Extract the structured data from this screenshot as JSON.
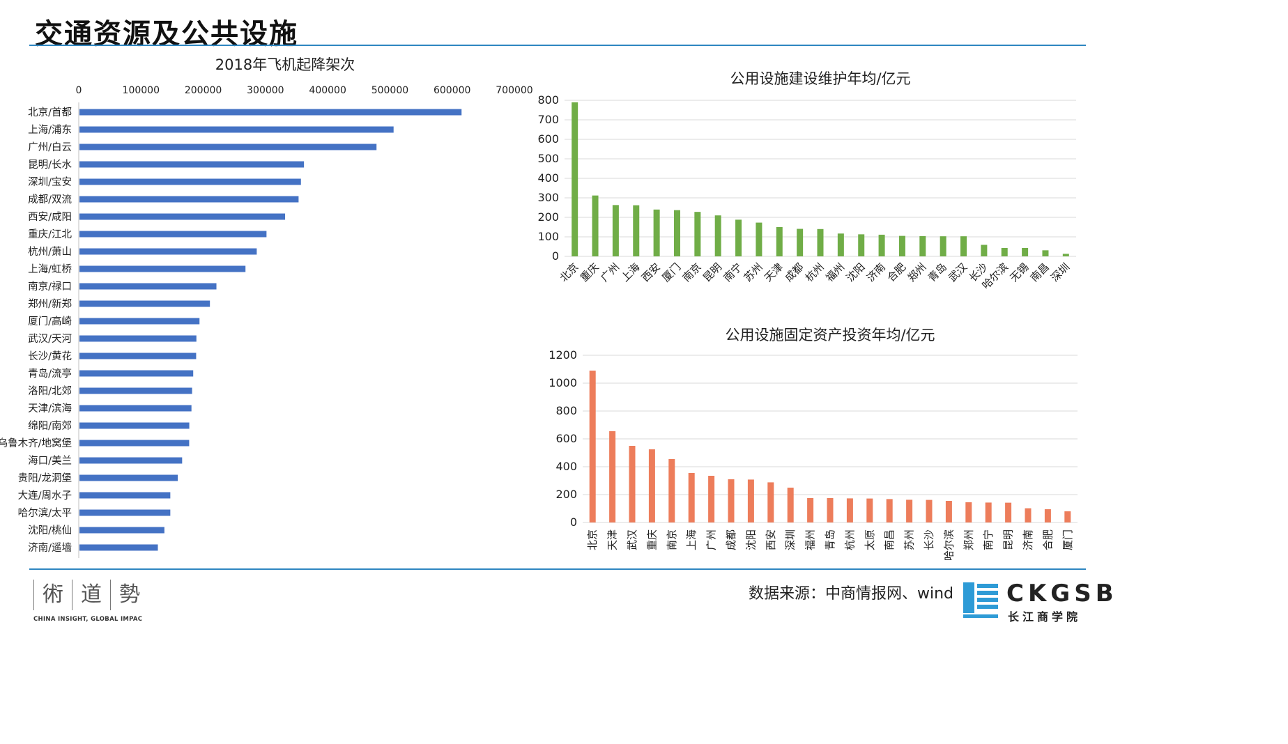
{
  "page": {
    "title": "交通资源及公共设施",
    "source": "数据来源：中商情报网、wind",
    "logo_left": {
      "chars": [
        "術",
        "道",
        "勢"
      ],
      "tagline": "CHINA INSIGHT, GLOBAL IMPAC"
    },
    "logo_right": {
      "wordmark": "CKGSB",
      "subtitle": "长江商学院"
    }
  },
  "colors": {
    "blue_bar": "#4472c4",
    "green_bar": "#70ad47",
    "orange_bar": "#ed7d5b",
    "rule": "#2e86c1",
    "grid": "#d9d9d9"
  },
  "chart_data": [
    {
      "id": "flights",
      "type": "bar",
      "orientation": "horizontal",
      "title": "2018年飞机起降架次",
      "categories": [
        "北京/首都",
        "上海/浦东",
        "广州/白云",
        "昆明/长水",
        "深圳/宝安",
        "成都/双流",
        "西安/咸阳",
        "重庆/江北",
        "杭州/萧山",
        "上海/虹桥",
        "南京/禄口",
        "郑州/新郑",
        "厦门/高崎",
        "武汉/天河",
        "长沙/黄花",
        "青岛/流亭",
        "洛阳/北郊",
        "天津/滨海",
        "绵阳/南郊",
        "乌鲁木齐/地窝堡",
        "海口/美兰",
        "贵阳/龙洞堡",
        "大连/周水子",
        "哈尔滨/太平",
        "沈阳/桃仙",
        "济南/遥墙"
      ],
      "values": [
        614022,
        504794,
        477364,
        360785,
        355907,
        352124,
        330477,
        300578,
        284893,
        266790,
        220115,
        209646,
        192915,
        187919,
        187520,
        182802,
        181000,
        180000,
        176500,
        176300,
        165000,
        158000,
        146000,
        146000,
        136500,
        126000
      ],
      "xlim": [
        0,
        700000
      ],
      "ticks": [
        "0",
        "100000",
        "200000",
        "300000",
        "400000",
        "500000",
        "600000",
        "700000"
      ],
      "grid": false
    },
    {
      "id": "maintenance",
      "type": "bar",
      "title": "公用设施建设维护年均/亿元",
      "categories": [
        "北京",
        "重庆",
        "广州",
        "上海",
        "西安",
        "厦门",
        "南京",
        "昆明",
        "南宁",
        "苏州",
        "天津",
        "成都",
        "杭州",
        "福州",
        "沈阳",
        "济南",
        "合肥",
        "郑州",
        "青岛",
        "武汉",
        "长沙",
        "哈尔滨",
        "无锡",
        "南昌",
        "深圳"
      ],
      "values": [
        790,
        312,
        263,
        262,
        240,
        237,
        228,
        210,
        188,
        173,
        150,
        141,
        140,
        117,
        113,
        111,
        105,
        104,
        103,
        103,
        59,
        43,
        43,
        31,
        13
      ],
      "ylim": [
        0,
        800
      ],
      "ticks": [
        "0",
        "100",
        "200",
        "300",
        "400",
        "500",
        "600",
        "700",
        "800"
      ],
      "grid": true
    },
    {
      "id": "investment",
      "type": "bar",
      "title": "公用设施固定资产投资年均/亿元",
      "categories": [
        "北京",
        "天津",
        "武汉",
        "重庆",
        "南京",
        "上海",
        "广州",
        "成都",
        "沈阳",
        "西安",
        "深圳",
        "福州",
        "青岛",
        "杭州",
        "太原",
        "南昌",
        "苏州",
        "长沙",
        "哈尔滨",
        "郑州",
        "南宁",
        "昆明",
        "济南",
        "合肥",
        "厦门"
      ],
      "values": [
        1090,
        655,
        550,
        525,
        455,
        355,
        335,
        310,
        308,
        288,
        250,
        175,
        175,
        173,
        172,
        168,
        163,
        162,
        155,
        145,
        143,
        142,
        102,
        95,
        80
      ],
      "ylim": [
        0,
        1200
      ],
      "ticks": [
        "0",
        "200",
        "400",
        "600",
        "800",
        "1000",
        "1200"
      ],
      "grid": true
    }
  ]
}
